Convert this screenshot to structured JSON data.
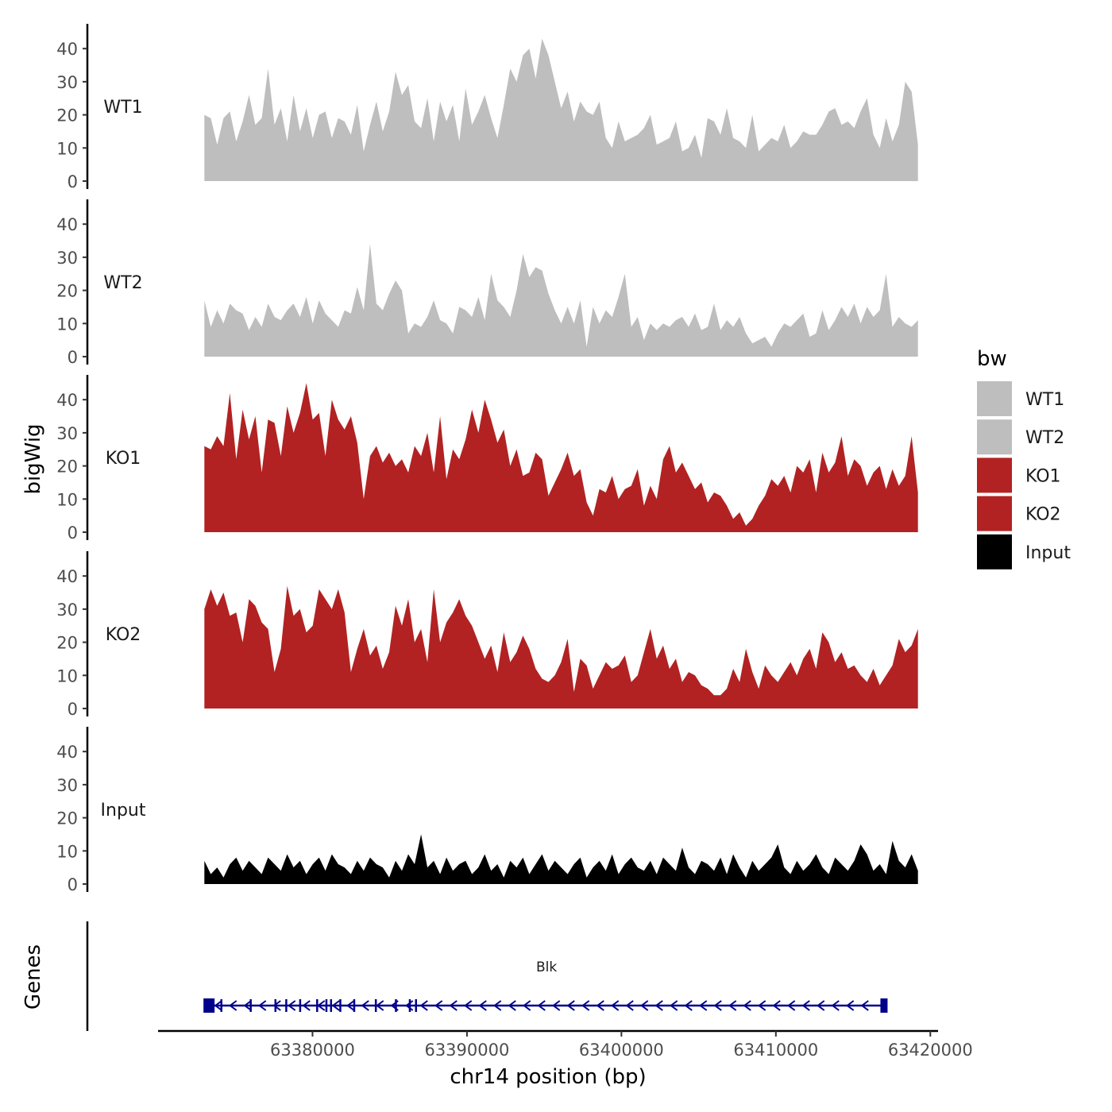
{
  "chart_data": {
    "type": "area",
    "ylabel": "bigWig",
    "xlabel": "chr14 position (bp)",
    "ylim": [
      0,
      47
    ],
    "yticks": [
      0,
      10,
      20,
      30,
      40
    ],
    "xlim": [
      63370000,
      63420500
    ],
    "xticks": [
      63380000,
      63390000,
      63400000,
      63410000,
      63420000
    ],
    "xtick_labels": [
      "63380000",
      "63390000",
      "63400000",
      "63410000",
      "63420000"
    ],
    "x_start": 63373000,
    "x_end": 63419200,
    "legend": {
      "title": "bw",
      "position": "right",
      "entries": [
        {
          "label": "WT1",
          "color": "#bebebe"
        },
        {
          "label": "WT2",
          "color": "#bebebe"
        },
        {
          "label": "KO1",
          "color": "#b22222"
        },
        {
          "label": "KO2",
          "color": "#b22222"
        },
        {
          "label": "Input",
          "color": "#000000"
        }
      ]
    },
    "series": [
      {
        "name": "WT1",
        "color": "#bebebe",
        "values": [
          20,
          19,
          11,
          19,
          21,
          12,
          18,
          26,
          17,
          19,
          34,
          17,
          22,
          12,
          26,
          15,
          22,
          13,
          20,
          21,
          13,
          19,
          18,
          14,
          23,
          9,
          17,
          24,
          15,
          21,
          33,
          26,
          29,
          18,
          16,
          25,
          12,
          24,
          18,
          23,
          12,
          28,
          17,
          21,
          26,
          19,
          13,
          23,
          34,
          30,
          38,
          40,
          31,
          43,
          38,
          30,
          22,
          27,
          18,
          24,
          21,
          20,
          24,
          13,
          10,
          18,
          12,
          13,
          14,
          16,
          20,
          11,
          12,
          13,
          18,
          9,
          10,
          14,
          7,
          19,
          18,
          14,
          22,
          13,
          12,
          10,
          20,
          9,
          11,
          13,
          12,
          17,
          10,
          12,
          15,
          14,
          14,
          17,
          21,
          22,
          17,
          18,
          16,
          21,
          25,
          14,
          10,
          19,
          12,
          17,
          30,
          27,
          11
        ]
      },
      {
        "name": "WT2",
        "color": "#bebebe",
        "values": [
          17,
          9,
          14,
          10,
          16,
          14,
          13,
          8,
          12,
          9,
          16,
          12,
          11,
          14,
          16,
          12,
          18,
          10,
          17,
          13,
          11,
          9,
          14,
          13,
          21,
          14,
          34,
          16,
          14,
          19,
          23,
          20,
          7,
          10,
          9,
          12,
          17,
          11,
          10,
          7,
          15,
          14,
          12,
          18,
          11,
          25,
          17,
          15,
          12,
          20,
          31,
          24,
          27,
          26,
          19,
          14,
          10,
          15,
          10,
          17,
          3,
          15,
          10,
          14,
          12,
          18,
          25,
          9,
          12,
          5,
          10,
          8,
          10,
          9,
          11,
          12,
          9,
          13,
          8,
          9,
          16,
          8,
          11,
          9,
          12,
          7,
          4,
          5,
          6,
          3,
          7,
          10,
          9,
          11,
          13,
          6,
          7,
          14,
          8,
          11,
          15,
          12,
          16,
          10,
          15,
          12,
          14,
          25,
          9,
          12,
          10,
          9,
          11
        ]
      },
      {
        "name": "KO1",
        "color": "#b22222",
        "values": [
          26,
          25,
          29,
          26,
          42,
          22,
          37,
          28,
          35,
          18,
          34,
          33,
          23,
          38,
          30,
          36,
          45,
          34,
          36,
          23,
          40,
          34,
          31,
          35,
          27,
          10,
          23,
          26,
          21,
          24,
          20,
          22,
          18,
          26,
          23,
          30,
          18,
          35,
          16,
          25,
          22,
          28,
          37,
          30,
          40,
          34,
          27,
          31,
          20,
          25,
          17,
          18,
          24,
          22,
          11,
          15,
          19,
          24,
          17,
          19,
          9,
          5,
          13,
          12,
          17,
          10,
          13,
          14,
          19,
          8,
          14,
          10,
          22,
          26,
          18,
          21,
          17,
          13,
          15,
          9,
          12,
          11,
          8,
          4,
          6,
          2,
          4,
          8,
          11,
          16,
          14,
          17,
          12,
          20,
          18,
          22,
          12,
          24,
          18,
          21,
          29,
          17,
          22,
          20,
          14,
          18,
          20,
          13,
          19,
          14,
          17,
          29,
          12
        ]
      },
      {
        "name": "KO2",
        "color": "#b22222",
        "values": [
          30,
          36,
          31,
          35,
          28,
          29,
          20,
          33,
          31,
          26,
          24,
          11,
          18,
          37,
          28,
          30,
          23,
          25,
          36,
          33,
          30,
          36,
          29,
          11,
          18,
          24,
          16,
          19,
          12,
          17,
          31,
          25,
          33,
          20,
          24,
          14,
          36,
          20,
          26,
          29,
          33,
          28,
          25,
          20,
          15,
          19,
          11,
          23,
          14,
          17,
          22,
          18,
          12,
          9,
          8,
          10,
          14,
          21,
          5,
          15,
          13,
          6,
          10,
          14,
          12,
          13,
          16,
          8,
          10,
          17,
          24,
          15,
          19,
          12,
          15,
          8,
          11,
          10,
          7,
          6,
          4,
          4,
          6,
          12,
          8,
          18,
          11,
          6,
          13,
          10,
          8,
          11,
          14,
          10,
          15,
          18,
          12,
          23,
          20,
          14,
          17,
          12,
          13,
          10,
          8,
          12,
          7,
          10,
          13,
          21,
          17,
          19,
          24
        ]
      },
      {
        "name": "Input",
        "color": "#000000",
        "values": [
          7,
          3,
          5,
          2,
          6,
          8,
          4,
          7,
          5,
          3,
          8,
          6,
          4,
          9,
          5,
          7,
          3,
          6,
          8,
          4,
          9,
          6,
          5,
          3,
          7,
          4,
          8,
          6,
          5,
          2,
          7,
          4,
          9,
          6,
          15,
          5,
          7,
          3,
          8,
          4,
          6,
          7,
          3,
          5,
          9,
          4,
          6,
          2,
          7,
          5,
          8,
          3,
          6,
          9,
          4,
          7,
          5,
          3,
          6,
          8,
          2,
          5,
          7,
          4,
          9,
          3,
          6,
          8,
          5,
          4,
          7,
          3,
          8,
          6,
          4,
          11,
          5,
          3,
          7,
          6,
          4,
          8,
          3,
          9,
          5,
          2,
          7,
          4,
          6,
          8,
          12,
          5,
          3,
          7,
          4,
          6,
          9,
          5,
          3,
          8,
          6,
          4,
          7,
          12,
          9,
          4,
          6,
          3,
          13,
          7,
          5,
          9,
          4
        ]
      }
    ],
    "genes": {
      "panel_label": "Genes",
      "name": "Blk",
      "strand": "-",
      "color": "#00008b",
      "start": 63373200,
      "end": 63417100,
      "exons": [
        63373300,
        63374100,
        63376000,
        63377600,
        63378300,
        63379200,
        63380300,
        63380900,
        63381200,
        63381800,
        63382700,
        63384100,
        63385400,
        63386300,
        63386700,
        63417000
      ]
    }
  }
}
